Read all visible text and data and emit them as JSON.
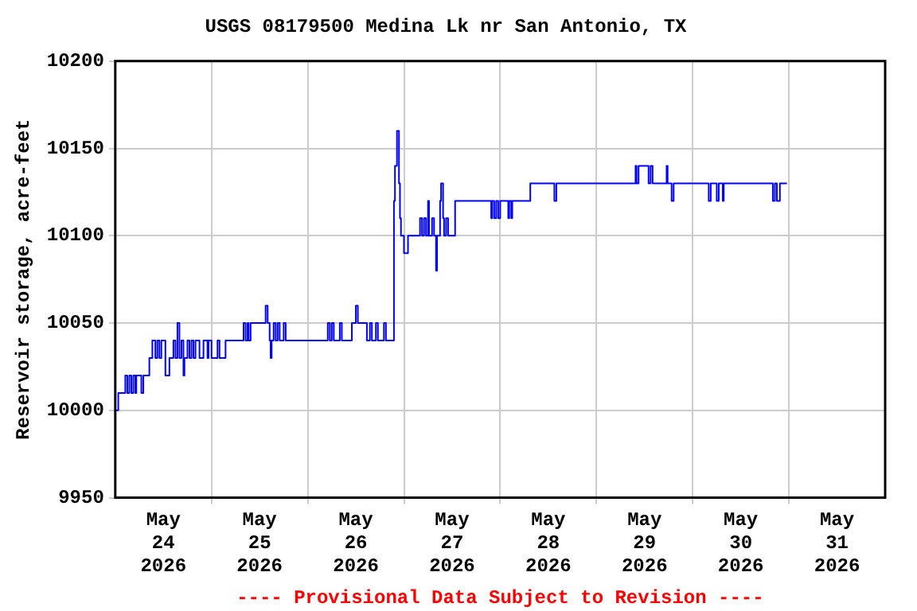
{
  "chart_data": {
    "type": "step",
    "title": "USGS 08179500 Medina Lk nr San Antonio, TX",
    "ylabel": "Reservoir storage, acre-feet",
    "annotations": [
      "---- Provisional Data Subject to Revision ----"
    ],
    "x": [
      "2026-05-24T00:15",
      "2026-05-24T00:45",
      "2026-05-24T02:30",
      "2026-05-24T03:00",
      "2026-05-24T03:30",
      "2026-05-24T04:00",
      "2026-05-24T04:30",
      "2026-05-24T05:00",
      "2026-05-24T05:15",
      "2026-05-24T06:30",
      "2026-05-24T07:00",
      "2026-05-24T08:30",
      "2026-05-24T09:15",
      "2026-05-24T10:00",
      "2026-05-24T10:30",
      "2026-05-24T11:00",
      "2026-05-24T11:30",
      "2026-05-24T12:30",
      "2026-05-24T13:30",
      "2026-05-24T14:30",
      "2026-05-24T15:00",
      "2026-05-24T15:30",
      "2026-05-24T16:00",
      "2026-05-24T16:30",
      "2026-05-24T17:00",
      "2026-05-24T17:15",
      "2026-05-24T18:00",
      "2026-05-24T18:30",
      "2026-05-24T19:00",
      "2026-05-24T19:30",
      "2026-05-24T20:00",
      "2026-05-24T21:00",
      "2026-05-24T22:00",
      "2026-05-24T23:00",
      "2026-05-24T23:15",
      "2026-05-25T00:00",
      "2026-05-25T01:30",
      "2026-05-25T02:00",
      "2026-05-25T03:30",
      "2026-05-25T08:00",
      "2026-05-25T08:30",
      "2026-05-25T09:00",
      "2026-05-25T09:15",
      "2026-05-25T09:45",
      "2026-05-25T13:30",
      "2026-05-25T14:00",
      "2026-05-25T14:30",
      "2026-05-25T14:45",
      "2026-05-25T15:00",
      "2026-05-25T15:30",
      "2026-05-25T16:00",
      "2026-05-25T16:30",
      "2026-05-25T17:00",
      "2026-05-25T18:00",
      "2026-05-25T18:30",
      "2026-05-26T05:00",
      "2026-05-26T05:30",
      "2026-05-26T06:00",
      "2026-05-26T06:30",
      "2026-05-26T08:00",
      "2026-05-26T08:30",
      "2026-05-26T11:00",
      "2026-05-26T12:00",
      "2026-05-26T12:30",
      "2026-05-26T14:45",
      "2026-05-26T15:30",
      "2026-05-26T16:00",
      "2026-05-26T17:00",
      "2026-05-26T17:30",
      "2026-05-26T19:00",
      "2026-05-26T19:30",
      "2026-05-26T21:30",
      "2026-05-26T21:45",
      "2026-05-26T22:15",
      "2026-05-26T22:45",
      "2026-05-26T23:00",
      "2026-05-26T23:15",
      "2026-05-27T00:00",
      "2026-05-27T01:00",
      "2026-05-27T04:00",
      "2026-05-27T04:30",
      "2026-05-27T05:00",
      "2026-05-27T05:30",
      "2026-05-27T06:00",
      "2026-05-27T06:15",
      "2026-05-27T07:00",
      "2026-05-27T07:30",
      "2026-05-27T08:00",
      "2026-05-27T08:15",
      "2026-05-27T09:00",
      "2026-05-27T09:15",
      "2026-05-27T09:45",
      "2026-05-27T10:00",
      "2026-05-27T10:30",
      "2026-05-27T11:00",
      "2026-05-27T12:45",
      "2026-05-27T21:45",
      "2026-05-27T22:00",
      "2026-05-27T22:30",
      "2026-05-27T23:00",
      "2026-05-27T23:30",
      "2026-05-28T00:00",
      "2026-05-28T02:00",
      "2026-05-28T02:15",
      "2026-05-28T02:45",
      "2026-05-28T03:00",
      "2026-05-28T07:30",
      "2026-05-28T13:30",
      "2026-05-28T14:00",
      "2026-05-29T09:45",
      "2026-05-29T10:00",
      "2026-05-29T10:30",
      "2026-05-29T13:00",
      "2026-05-29T13:30",
      "2026-05-29T14:00",
      "2026-05-29T17:30",
      "2026-05-29T17:45",
      "2026-05-29T18:45",
      "2026-05-29T19:15",
      "2026-05-30T04:00",
      "2026-05-30T04:30",
      "2026-05-30T06:00",
      "2026-05-30T06:30",
      "2026-05-30T07:30",
      "2026-05-30T07:45",
      "2026-05-30T20:00",
      "2026-05-30T20:30",
      "2026-05-30T21:00",
      "2026-05-30T21:45",
      "2026-05-30T23:30"
    ],
    "series": [
      {
        "color": "#0000ff",
        "values": [
          10000,
          10010,
          10020,
          10010,
          10020,
          10010,
          10020,
          10010,
          10020,
          10010,
          10020,
          10030,
          10040,
          10030,
          10040,
          10030,
          10040,
          10020,
          10030,
          10040,
          10030,
          10050,
          10030,
          10040,
          10020,
          10030,
          10040,
          10030,
          10040,
          10030,
          10040,
          10030,
          10040,
          10030,
          10040,
          10030,
          10040,
          10030,
          10040,
          10050,
          10040,
          10050,
          10040,
          10050,
          10060,
          10050,
          10040,
          10030,
          10040,
          10050,
          10040,
          10050,
          10040,
          10050,
          10040,
          10050,
          10040,
          10050,
          10040,
          10050,
          10040,
          10050,
          10060,
          10050,
          10040,
          10050,
          10040,
          10050,
          10040,
          10050,
          10040,
          10120,
          10140,
          10160,
          10130,
          10110,
          10100,
          10090,
          10100,
          10110,
          10100,
          10110,
          10100,
          10120,
          10100,
          10110,
          10100,
          10080,
          10100,
          10120,
          10130,
          10110,
          10100,
          10110,
          10100,
          10120,
          10110,
          10120,
          10110,
          10120,
          10110,
          10120,
          10110,
          10120,
          10110,
          10120,
          10130,
          10120,
          10130,
          10140,
          10130,
          10140,
          10130,
          10140,
          10130,
          10140,
          10130,
          10120,
          10130,
          10120,
          10130,
          10120,
          10130,
          10120,
          10130,
          10120,
          10130,
          10120,
          10130,
          10130
        ]
      }
    ],
    "xlim": [
      "2026-05-24T00:00",
      "2026-06-01T00:00"
    ],
    "xticks": [
      {
        "value": "2026-05-24T12:00",
        "label": "May 24 2026"
      },
      {
        "value": "2026-05-25T00:00",
        "label": null
      },
      {
        "value": "2026-05-25T12:00",
        "label": "May 25 2026"
      },
      {
        "value": "2026-05-26T00:00",
        "label": null
      },
      {
        "value": "2026-05-26T12:00",
        "label": "May 26 2026"
      },
      {
        "value": "2026-05-27T00:00",
        "label": null
      },
      {
        "value": "2026-05-27T12:00",
        "label": "May 27 2026"
      },
      {
        "value": "2026-05-28T00:00",
        "label": null
      },
      {
        "value": "2026-05-28T12:00",
        "label": "May 28 2026"
      },
      {
        "value": "2026-05-29T00:00",
        "label": null
      },
      {
        "value": "2026-05-29T12:00",
        "label": "May 29 2026"
      },
      {
        "value": "2026-05-30T00:00",
        "label": null
      },
      {
        "value": "2026-05-30T12:00",
        "label": "May 30 2026"
      },
      {
        "value": "2026-05-31T00:00",
        "label": null
      },
      {
        "value": "2026-05-31T12:00",
        "label": "May 31 2026"
      }
    ],
    "ylim": [
      9950,
      10200
    ],
    "yticks": [
      9950,
      10000,
      10050,
      10100,
      10150,
      10200
    ],
    "grid": true,
    "marker": "none",
    "line_style": "solid"
  }
}
